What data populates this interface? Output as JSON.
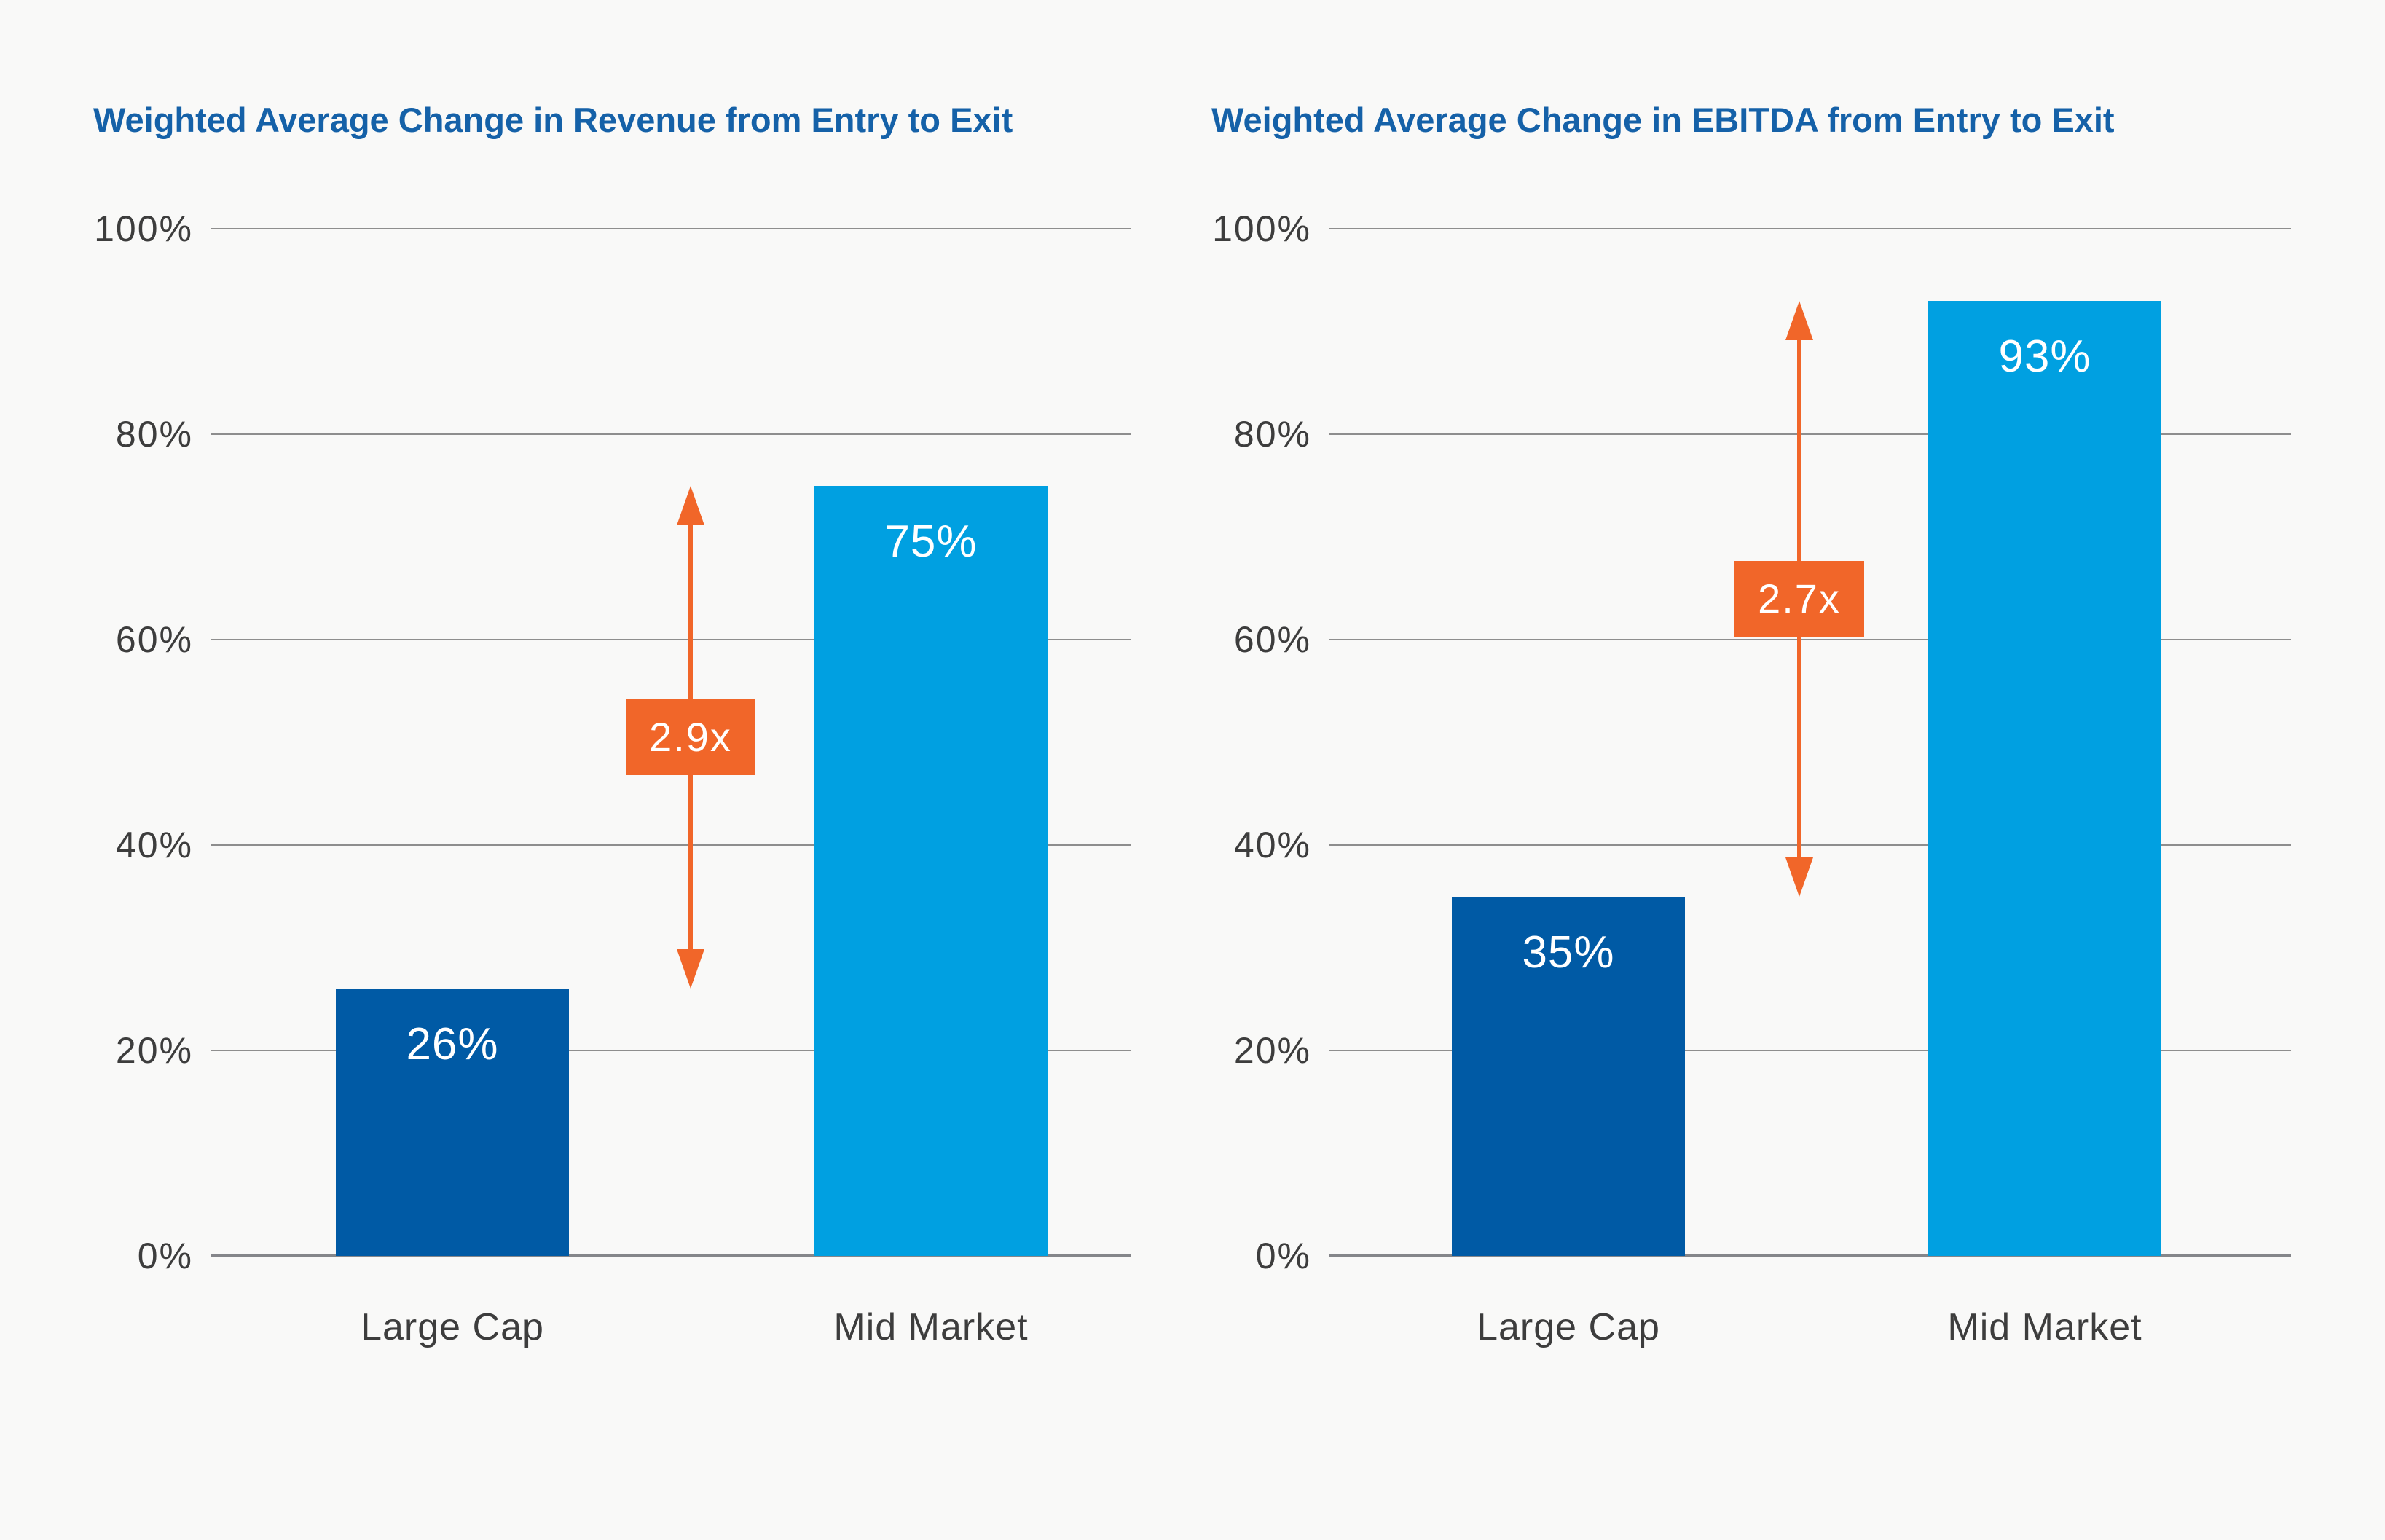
{
  "page": {
    "background": "#f9f9f8"
  },
  "colors": {
    "title_blue": "#1561a8",
    "large_cap_bar": "#005aa5",
    "mid_market_bar": "#00a0e1",
    "accent_orange": "#f16629",
    "gridline_gray": "#8e8e8e",
    "baseline_gray": "#85868a",
    "axis_text": "#3d3d3d",
    "bar_value_text": "#ffffff"
  },
  "chart_data": [
    {
      "type": "bar",
      "title": "Weighted Average Change in Revenue from Entry to Exit",
      "categories": [
        "Large Cap",
        "Mid Market"
      ],
      "values": [
        26,
        75
      ],
      "value_labels": [
        "26%",
        "75%"
      ],
      "ratio_label": "2.9x",
      "xlabel": "",
      "ylabel": "",
      "ylim": [
        0,
        100
      ],
      "yticks": [
        "100%",
        "80%",
        "60%",
        "40%",
        "20%",
        "0%"
      ],
      "grid": true,
      "legend": "none",
      "bar_colors": [
        "#005aa5",
        "#00a0e1"
      ]
    },
    {
      "type": "bar",
      "title": "Weighted Average Change in EBITDA from Entry to Exit",
      "categories": [
        "Large Cap",
        "Mid Market"
      ],
      "values": [
        35,
        93
      ],
      "value_labels": [
        "35%",
        "93%"
      ],
      "ratio_label": "2.7x",
      "xlabel": "",
      "ylabel": "",
      "ylim": [
        0,
        100
      ],
      "yticks": [
        "100%",
        "80%",
        "60%",
        "40%",
        "20%",
        "0%"
      ],
      "grid": true,
      "legend": "none",
      "bar_colors": [
        "#005aa5",
        "#00a0e1"
      ]
    }
  ]
}
